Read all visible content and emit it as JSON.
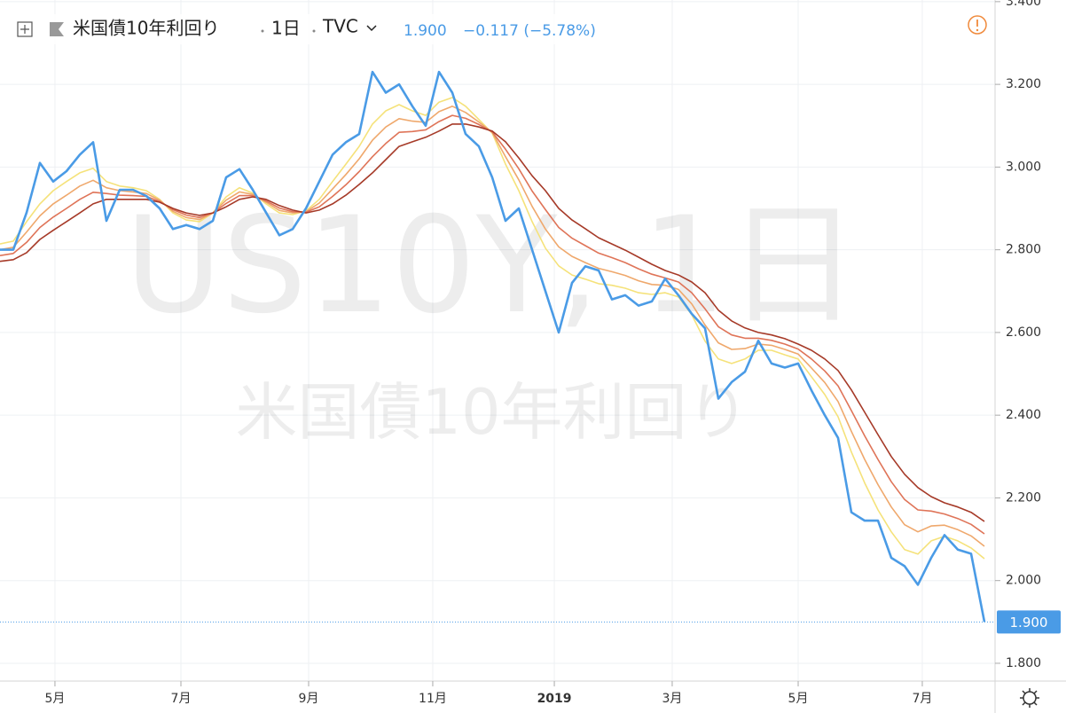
{
  "chart_data": {
    "type": "line",
    "title": "米国債10年利回り",
    "interval": "1日",
    "source": "TVC",
    "last_value_label": "1.900",
    "change_label": "−0.117 (−5.78%)",
    "watermark": "US10Y, 1日",
    "series": [
      {
        "color": "#f5e27a",
        "values": [
          2.814,
          2.821,
          2.868,
          2.911,
          2.943,
          2.965,
          2.986,
          2.997,
          2.965,
          2.954,
          2.95,
          2.943,
          2.922,
          2.889,
          2.872,
          2.868,
          2.889,
          2.928,
          2.95,
          2.937,
          2.911,
          2.889,
          2.885,
          2.894,
          2.922,
          2.965,
          3.007,
          3.05,
          3.104,
          3.136,
          3.151,
          3.136,
          3.125,
          3.157,
          3.168,
          3.147,
          3.115,
          3.082,
          3.007,
          2.943,
          2.868,
          2.804,
          2.761,
          2.739,
          2.729,
          2.718,
          2.714,
          2.707,
          2.696,
          2.692,
          2.696,
          2.686,
          2.643,
          2.579,
          2.536,
          2.525,
          2.536,
          2.557,
          2.557,
          2.546,
          2.536,
          2.493,
          2.45,
          2.396,
          2.311,
          2.236,
          2.171,
          2.118,
          2.075,
          2.064,
          2.096,
          2.107,
          2.096,
          2.079,
          2.053
        ]
      },
      {
        "color": "#efa86c",
        "values": [
          2.8,
          2.806,
          2.843,
          2.882,
          2.911,
          2.932,
          2.954,
          2.968,
          2.95,
          2.943,
          2.94,
          2.936,
          2.92,
          2.893,
          2.878,
          2.873,
          2.889,
          2.92,
          2.94,
          2.934,
          2.915,
          2.895,
          2.889,
          2.892,
          2.913,
          2.947,
          2.982,
          3.02,
          3.065,
          3.097,
          3.117,
          3.111,
          3.108,
          3.134,
          3.147,
          3.132,
          3.109,
          3.084,
          3.025,
          2.969,
          2.905,
          2.85,
          2.807,
          2.784,
          2.769,
          2.755,
          2.747,
          2.738,
          2.725,
          2.716,
          2.714,
          2.704,
          2.669,
          2.618,
          2.575,
          2.559,
          2.561,
          2.572,
          2.569,
          2.559,
          2.548,
          2.514,
          2.479,
          2.433,
          2.361,
          2.293,
          2.232,
          2.178,
          2.135,
          2.118,
          2.132,
          2.134,
          2.123,
          2.108,
          2.083
        ]
      },
      {
        "color": "#df7458",
        "values": [
          2.786,
          2.791,
          2.818,
          2.854,
          2.879,
          2.9,
          2.922,
          2.939,
          2.936,
          2.932,
          2.931,
          2.929,
          2.917,
          2.897,
          2.884,
          2.878,
          2.889,
          2.912,
          2.931,
          2.931,
          2.918,
          2.901,
          2.892,
          2.891,
          2.904,
          2.929,
          2.957,
          2.989,
          3.025,
          3.057,
          3.084,
          3.086,
          3.09,
          3.11,
          3.125,
          3.118,
          3.103,
          3.085,
          3.043,
          2.996,
          2.942,
          2.897,
          2.854,
          2.828,
          2.81,
          2.792,
          2.781,
          2.769,
          2.754,
          2.741,
          2.732,
          2.722,
          2.696,
          2.657,
          2.614,
          2.594,
          2.586,
          2.586,
          2.581,
          2.572,
          2.56,
          2.536,
          2.507,
          2.471,
          2.411,
          2.35,
          2.293,
          2.239,
          2.196,
          2.171,
          2.168,
          2.161,
          2.15,
          2.136,
          2.113
        ]
      },
      {
        "color": "#a63a28",
        "values": [
          2.772,
          2.776,
          2.793,
          2.825,
          2.847,
          2.868,
          2.889,
          2.911,
          2.922,
          2.922,
          2.922,
          2.922,
          2.915,
          2.9,
          2.889,
          2.883,
          2.889,
          2.904,
          2.922,
          2.928,
          2.922,
          2.907,
          2.896,
          2.889,
          2.896,
          2.911,
          2.932,
          2.958,
          2.986,
          3.018,
          3.05,
          3.061,
          3.072,
          3.087,
          3.104,
          3.104,
          3.097,
          3.087,
          3.061,
          3.022,
          2.979,
          2.943,
          2.9,
          2.872,
          2.851,
          2.829,
          2.814,
          2.799,
          2.782,
          2.765,
          2.75,
          2.739,
          2.722,
          2.696,
          2.654,
          2.628,
          2.611,
          2.6,
          2.594,
          2.585,
          2.572,
          2.557,
          2.536,
          2.508,
          2.461,
          2.407,
          2.353,
          2.3,
          2.257,
          2.225,
          2.203,
          2.188,
          2.178,
          2.165,
          2.143
        ]
      },
      {
        "color": "#4a9be6",
        "values": [
          2.8,
          2.8,
          2.89,
          3.01,
          2.965,
          2.99,
          3.03,
          3.06,
          2.87,
          2.945,
          2.945,
          2.93,
          2.9,
          2.85,
          2.86,
          2.85,
          2.87,
          2.975,
          2.995,
          2.945,
          2.89,
          2.835,
          2.85,
          2.9,
          2.965,
          3.03,
          3.06,
          3.08,
          3.23,
          3.18,
          3.2,
          3.147,
          3.1,
          3.23,
          3.18,
          3.08,
          3.05,
          2.975,
          2.87,
          2.9,
          2.8,
          2.7,
          2.6,
          2.72,
          2.76,
          2.75,
          2.68,
          2.69,
          2.665,
          2.675,
          2.73,
          2.69,
          2.645,
          2.61,
          2.44,
          2.48,
          2.505,
          2.58,
          2.525,
          2.515,
          2.525,
          2.46,
          2.4,
          2.345,
          2.165,
          2.145,
          2.145,
          2.055,
          2.035,
          1.99,
          2.055,
          2.11,
          2.075,
          2.065,
          1.9
        ]
      }
    ],
    "xlim": [
      0,
      74
    ],
    "xticks": [
      {
        "value": 4.13,
        "label": "5月"
      },
      {
        "value": 13.6,
        "label": "7月"
      },
      {
        "value": 23.2,
        "label": "9月"
      },
      {
        "value": 32.53,
        "label": "11月"
      },
      {
        "value": 41.67,
        "label": "2019"
      },
      {
        "value": 50.53,
        "label": "3月"
      },
      {
        "value": 60,
        "label": "5月"
      },
      {
        "value": 69.33,
        "label": "7月"
      }
    ],
    "ylim": [
      1.757,
      3.404
    ],
    "yticks": [
      {
        "value": 1.8,
        "label": "1.800"
      },
      {
        "value": 2.0,
        "label": "2.000"
      },
      {
        "value": 2.2,
        "label": "2.200"
      },
      {
        "value": 2.4,
        "label": "2.400"
      },
      {
        "value": 2.6,
        "label": "2.600"
      },
      {
        "value": 2.8,
        "label": "2.800"
      },
      {
        "value": 3.0,
        "label": "3.000"
      },
      {
        "value": 3.2,
        "label": "3.200"
      },
      {
        "value": 3.4,
        "label": "3.400"
      }
    ],
    "grid": true
  }
}
